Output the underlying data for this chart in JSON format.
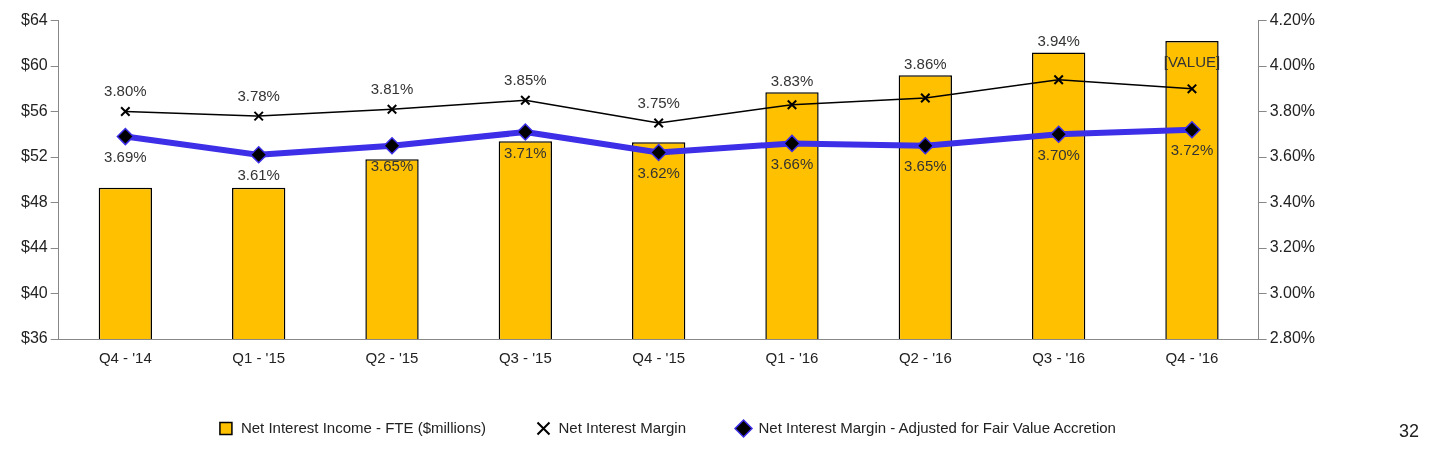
{
  "chart_data": {
    "type": "bar",
    "categories": [
      "Q4 - '14",
      "Q1 - '15",
      "Q2 - '15",
      "Q3 - '15",
      "Q4 - '15",
      "Q1 - '16",
      "Q2 - '16",
      "Q3 - '16",
      "Q4 - '16"
    ],
    "series": [
      {
        "name": "Net Interest Income - FTE ($millions)",
        "color": "#ffc000",
        "values": [
          49.3,
          49.3,
          51.8,
          53.4,
          53.3,
          57.7,
          59.2,
          61.2,
          62.2
        ],
        "value_labels": [
          null,
          null,
          null,
          null,
          null,
          null,
          null,
          null,
          "[VALUE]"
        ]
      },
      {
        "name": "Net Interest Margin",
        "type": "line",
        "axis": "y2",
        "color": "#000000",
        "marker": "cross",
        "values": [
          3.8,
          3.78,
          3.81,
          3.85,
          3.75,
          3.83,
          3.86,
          3.94,
          3.9
        ],
        "value_labels": [
          "3.80%",
          "3.78%",
          "3.81%",
          "3.85%",
          "3.75%",
          "3.83%",
          "3.86%",
          "3.94%",
          null
        ]
      },
      {
        "name": "Net Interest Margin - Adjusted for Fair Value Accretion",
        "type": "line",
        "axis": "y2",
        "color": "#3d2ee8",
        "marker": "diamond",
        "values": [
          3.69,
          3.61,
          3.65,
          3.71,
          3.62,
          3.66,
          3.65,
          3.7,
          3.72
        ],
        "value_labels": [
          "3.69%",
          "3.61%",
          "3.65%",
          "3.71%",
          "3.62%",
          "3.66%",
          "3.65%",
          "3.70%",
          "3.72%"
        ]
      }
    ],
    "ylim": [
      36,
      64
    ],
    "yticks": [
      {
        "value": 36,
        "label": "$36"
      },
      {
        "value": 40,
        "label": "$40"
      },
      {
        "value": 44,
        "label": "$44"
      },
      {
        "value": 48,
        "label": "$48"
      },
      {
        "value": 52,
        "label": "$52"
      },
      {
        "value": 56,
        "label": "$56"
      },
      {
        "value": 60,
        "label": "$60"
      },
      {
        "value": 64,
        "label": "$64"
      }
    ],
    "y2lim": [
      2.8,
      4.2
    ],
    "y2ticks": [
      {
        "value": 2.8,
        "label": "2.80%"
      },
      {
        "value": 3.0,
        "label": "3.00%"
      },
      {
        "value": 3.2,
        "label": "3.20%"
      },
      {
        "value": 3.4,
        "label": "3.40%"
      },
      {
        "value": 3.6,
        "label": "3.60%"
      },
      {
        "value": 3.8,
        "label": "3.80%"
      },
      {
        "value": 4.0,
        "label": "4.00%"
      },
      {
        "value": 4.2,
        "label": "4.20%"
      }
    ],
    "grid": false,
    "legend": "bottom",
    "annotations": [
      "32"
    ]
  }
}
